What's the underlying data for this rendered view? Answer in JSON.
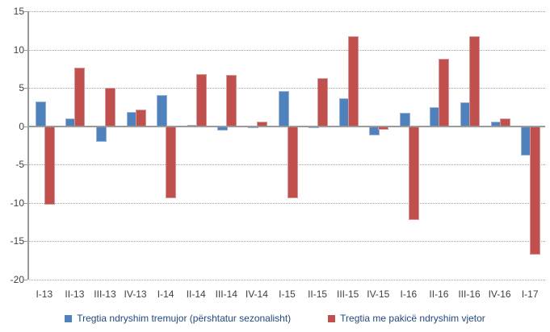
{
  "chart_data": {
    "type": "bar",
    "title": "",
    "xlabel": "",
    "ylabel": "",
    "categories": [
      "I-13",
      "II-13",
      "III-13",
      "IV-13",
      "I-14",
      "II-14",
      "III-14",
      "IV-14",
      "I-15",
      "II-15",
      "III-15",
      "IV-15",
      "I-16",
      "II-16",
      "III-16",
      "IV-16",
      "I-17"
    ],
    "series": [
      {
        "name": "Tregtia ndryshim tremujor (përshtatur sezonalisht)",
        "color": "#4f81bd",
        "values": [
          3.2,
          1.0,
          -1.9,
          1.9,
          4.1,
          0.2,
          -0.5,
          -0.1,
          4.6,
          -0.1,
          3.7,
          -1.1,
          1.8,
          2.5,
          3.1,
          0.6,
          -3.7
        ]
      },
      {
        "name": "Tregtia me pakicë ndryshim vjetor",
        "color": "#c0504d",
        "values": [
          -10.1,
          7.6,
          5.0,
          2.2,
          -9.3,
          6.8,
          6.7,
          0.6,
          -9.3,
          6.3,
          11.7,
          -0.3,
          -12.1,
          8.8,
          11.7,
          1.0,
          -16.6
        ]
      }
    ],
    "ylim": [
      -20,
      15
    ],
    "yticks": [
      15,
      10,
      5,
      0,
      -5,
      -10,
      -15,
      -20
    ],
    "grid": "horizontal-dotted",
    "legend_position": "bottom"
  },
  "style": {
    "axis_color": "#9a9a9a",
    "gridline_color": "#a3a3a3",
    "tick_label_color": "#3f3f3f",
    "legend_text_color": "#1f497d",
    "background": "#ffffff"
  }
}
